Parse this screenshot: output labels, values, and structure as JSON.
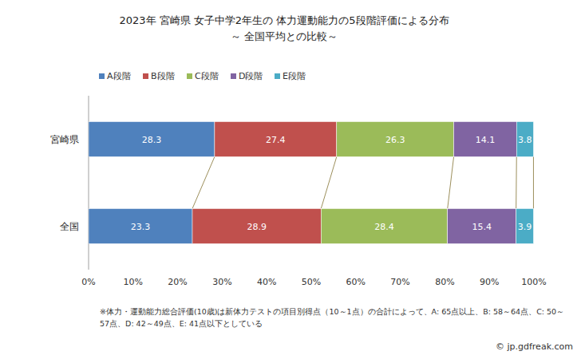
{
  "chart_data": {
    "type": "bar",
    "orientation": "horizontal",
    "stacked": true,
    "data_labels": true,
    "grid": false,
    "legend": "top",
    "title": "2023年 宮崎県  女子中学2年生の 体力運動能力の5段階評価による分布",
    "subtitle": "～  全国平均との比較～",
    "annotations": [
      "※体力・運動能力総合評価(10歳)は新体力テストの項目別得点（10～1点）の合計によって、A: 65点以上、B: 58～64点、C: 50～",
      "57点、D: 42～49点、E: 41点以下としている",
      "© jp.gdfreak.com"
    ],
    "categories": [
      "宮崎県",
      "全国"
    ],
    "series": [
      {
        "name": "A段階",
        "color": "#4f81bd",
        "values": [
          28.3,
          23.3
        ]
      },
      {
        "name": "B段階",
        "color": "#c0504d",
        "values": [
          27.4,
          28.9
        ]
      },
      {
        "name": "C段階",
        "color": "#9bbb59",
        "values": [
          26.3,
          28.4
        ]
      },
      {
        "name": "D段階",
        "color": "#8064a2",
        "values": [
          14.1,
          15.4
        ]
      },
      {
        "name": "E段階",
        "color": "#4bacc6",
        "values": [
          3.8,
          3.9
        ]
      }
    ],
    "xlim": [
      0,
      100
    ],
    "xticks": [
      {
        "value": 0,
        "label": "0%"
      },
      {
        "value": 10,
        "label": "10%"
      },
      {
        "value": 20,
        "label": "20%"
      },
      {
        "value": 30,
        "label": "30%"
      },
      {
        "value": 40,
        "label": "40%"
      },
      {
        "value": 50,
        "label": "50%"
      },
      {
        "value": 60,
        "label": "60%"
      },
      {
        "value": 70,
        "label": "70%"
      },
      {
        "value": 80,
        "label": "80%"
      },
      {
        "value": 90,
        "label": "90%"
      },
      {
        "value": 100,
        "label": "100%"
      }
    ]
  }
}
